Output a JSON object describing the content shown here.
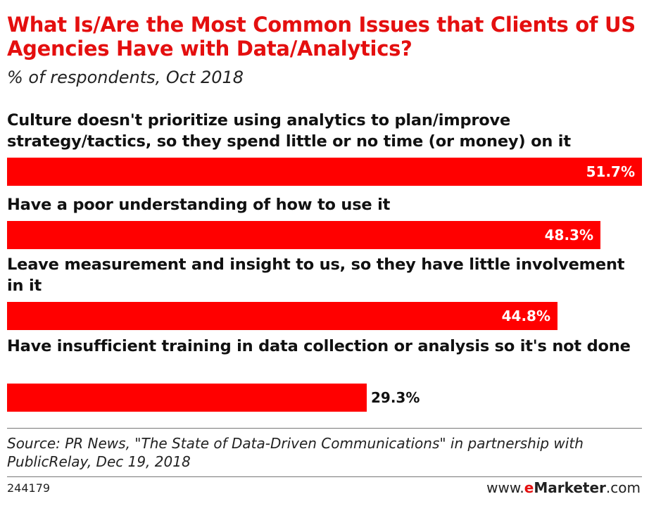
{
  "chart_data": {
    "type": "bar",
    "orientation": "horizontal",
    "title": "What Is/Are the Most Common Issues that Clients of US Agencies Have with Data/Analytics?",
    "subtitle": "% of respondents, Oct 2018",
    "categories": [
      "Culture doesn't prioritize using analytics to plan/improve strategy/tactics, so they spend little or no time (or money) on it",
      "Have a poor understanding of how to use it",
      "Leave measurement and insight to us, so they have little involvement in it",
      "Have insufficient training in data collection or analysis so it's not done"
    ],
    "values": [
      51.7,
      48.3,
      44.8,
      29.3
    ],
    "value_labels": [
      "51.7%",
      "48.3%",
      "44.8%",
      "29.3%"
    ],
    "xlim": [
      0,
      51.7
    ],
    "bar_color": "#ff0000",
    "grid": false,
    "legend": "none"
  },
  "footer": {
    "source": "Source: PR News, \"The State of Data-Driven Communications\" in partnership with PublicRelay, Dec 19, 2018",
    "chart_id": "244179",
    "brand_prefix": "www.",
    "brand_e": "e",
    "brand_marketer": "Marketer",
    "brand_suffix": ".com"
  },
  "colors": {
    "title": "#e40f0f",
    "bar": "#ff0000"
  }
}
